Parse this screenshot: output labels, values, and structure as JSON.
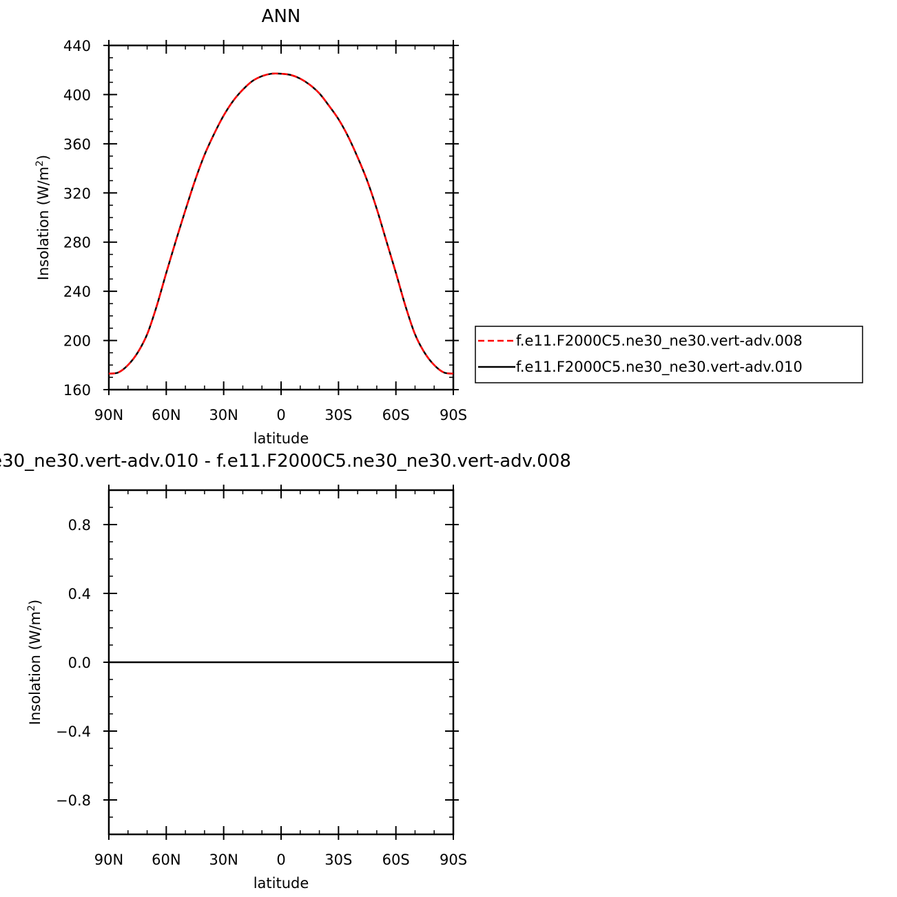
{
  "chart_data": [
    {
      "type": "line",
      "title": "ANN",
      "xlabel": "latitude",
      "ylabel": "Insolation (W/m2)",
      "ylabel_parts": {
        "text": "Insolation  (W/m",
        "sup": "2",
        "close": ")"
      },
      "x_tick_labels": [
        "90N",
        "60N",
        "30N",
        "0",
        "30S",
        "60S",
        "90S"
      ],
      "x_tick_values": [
        -90,
        -60,
        -30,
        0,
        30,
        60,
        90
      ],
      "y_tick_labels": [
        "440",
        "400",
        "360",
        "320",
        "280",
        "240",
        "200",
        "160"
      ],
      "y_tick_values": [
        440,
        400,
        360,
        320,
        280,
        240,
        200,
        160
      ],
      "xlim": [
        -90,
        90
      ],
      "ylim": [
        160,
        440
      ],
      "legend_position": "right",
      "x": [
        -90,
        -85,
        -80,
        -75,
        -70,
        -65,
        -60,
        -55,
        -50,
        -45,
        -40,
        -35,
        -30,
        -25,
        -20,
        -15,
        -10,
        -5,
        0,
        5,
        10,
        15,
        20,
        25,
        30,
        35,
        40,
        45,
        50,
        55,
        60,
        65,
        70,
        75,
        80,
        85,
        90
      ],
      "series": [
        {
          "name": "f.e11.F2000C5.ne30_ne30.vert-adv.008",
          "color": "#ff0000",
          "dash": "dashed",
          "values": [
            173,
            174,
            180,
            190,
            205,
            228,
            255,
            281,
            306,
            330,
            351,
            368,
            383,
            395,
            404,
            411,
            415,
            417,
            417,
            416,
            413,
            408,
            401,
            391,
            380,
            366,
            349,
            330,
            307,
            281,
            255,
            228,
            205,
            190,
            180,
            174,
            173
          ]
        },
        {
          "name": "f.e11.F2000C5.ne30_ne30.vert-adv.010",
          "color": "#000000",
          "dash": "solid",
          "values": [
            173,
            174,
            180,
            190,
            205,
            228,
            255,
            281,
            306,
            330,
            351,
            368,
            383,
            395,
            404,
            411,
            415,
            417,
            417,
            416,
            413,
            408,
            401,
            391,
            380,
            366,
            349,
            330,
            307,
            281,
            255,
            228,
            205,
            190,
            180,
            174,
            173
          ]
        }
      ]
    },
    {
      "type": "line",
      "title": "e30_ne30.vert-adv.010 - f.e11.F2000C5.ne30_ne30.vert-adv.008",
      "xlabel": "latitude",
      "ylabel": "Insolation (W/m2)",
      "ylabel_parts": {
        "text": "Insolation  (W/m",
        "sup": "2",
        "close": ")"
      },
      "x_tick_labels": [
        "90N",
        "60N",
        "30N",
        "0",
        "30S",
        "60S",
        "90S"
      ],
      "x_tick_values": [
        -90,
        -60,
        -30,
        0,
        30,
        60,
        90
      ],
      "y_tick_labels": [
        "0.8",
        "0.4",
        "0.0",
        "−0.4",
        "−0.8"
      ],
      "y_tick_values": [
        0.8,
        0.4,
        0.0,
        -0.4,
        -0.8
      ],
      "xlim": [
        -90,
        90
      ],
      "ylim": [
        -1,
        1
      ],
      "x": [
        -90,
        90
      ],
      "series": [
        {
          "color": "#000000",
          "dash": "solid",
          "values": [
            0,
            0
          ]
        }
      ]
    }
  ]
}
